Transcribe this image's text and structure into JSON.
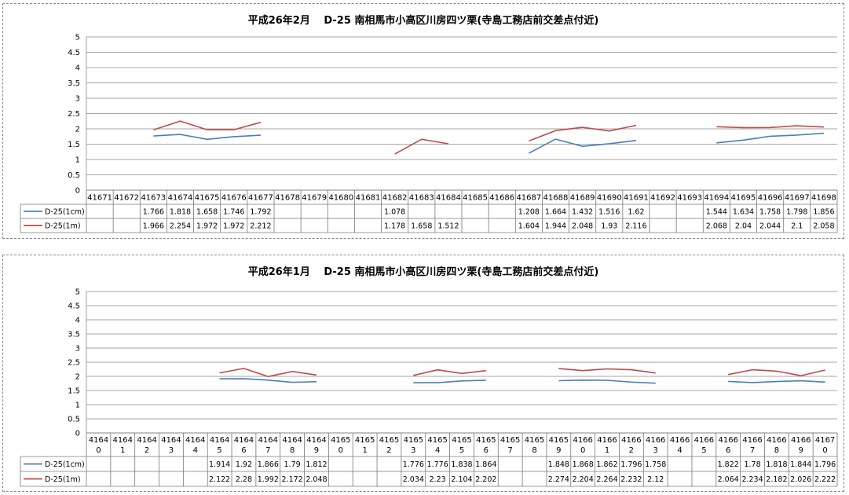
{
  "chart_data": [
    {
      "type": "line",
      "title": "平成26年2月　 D-25 南相馬市小高区川房四ツ栗(寺島工務店前交差点付近)",
      "ylim": [
        0,
        5
      ],
      "yticks": [
        "0",
        "0.5",
        "1",
        "1.5",
        "2",
        "2.5",
        "3",
        "3.5",
        "4",
        "4.5",
        "5"
      ],
      "grid": true,
      "legend": "data-table",
      "categories": [
        "41671",
        "41672",
        "41673",
        "41674",
        "41675",
        "41676",
        "41677",
        "41678",
        "41679",
        "41680",
        "41681",
        "41682",
        "41683",
        "41684",
        "41685",
        "41686",
        "41687",
        "41688",
        "41689",
        "41690",
        "41691",
        "41692",
        "41693",
        "41694",
        "41695",
        "41696",
        "41697",
        "41698"
      ],
      "series": [
        {
          "name": "D-25(1cm)",
          "color": "#4a7ebb",
          "values": [
            null,
            null,
            1.766,
            1.818,
            1.658,
            1.746,
            1.792,
            null,
            null,
            null,
            null,
            1.078,
            null,
            null,
            null,
            null,
            1.208,
            1.664,
            1.432,
            1.516,
            1.62,
            null,
            null,
            1.544,
            1.634,
            1.758,
            1.798,
            1.856
          ]
        },
        {
          "name": "D-25(1m)",
          "color": "#be4b48",
          "values": [
            null,
            null,
            1.966,
            2.254,
            1.972,
            1.972,
            2.212,
            null,
            null,
            null,
            null,
            1.178,
            1.658,
            1.512,
            null,
            null,
            1.604,
            1.944,
            2.048,
            1.93,
            2.116,
            null,
            null,
            2.068,
            2.04,
            2.044,
            2.1,
            2.058
          ]
        }
      ],
      "value_labels": [
        [
          "",
          "",
          "1.766",
          "1.818",
          "1.658",
          "1.746",
          "1.792",
          "",
          "",
          "",
          "",
          "1.078",
          "",
          "",
          "",
          "",
          "1.208",
          "1.664",
          "1.432",
          "1.516",
          "1.62",
          "",
          "",
          "1.544",
          "1.634",
          "1.758",
          "1.798",
          "1.856"
        ],
        [
          "",
          "",
          "1.966",
          "2.254",
          "1.972",
          "1.972",
          "2.212",
          "",
          "",
          "",
          "",
          "1.178",
          "1.658",
          "1.512",
          "",
          "",
          "1.604",
          "1.944",
          "2.048",
          "1.93",
          "2.116",
          "",
          "",
          "2.068",
          "2.04",
          "2.044",
          "2.1",
          "2.058"
        ]
      ]
    },
    {
      "type": "line",
      "title": "平成26年1月　 D-25 南相馬市小高区川房四ツ栗(寺島工務店前交差点付近)",
      "ylim": [
        0,
        5
      ],
      "yticks": [
        "0",
        "0.5",
        "1",
        "1.5",
        "2",
        "2.5",
        "3",
        "3.5",
        "4",
        "4.5",
        "5"
      ],
      "grid": true,
      "legend": "data-table",
      "categories": [
        "41640",
        "41641",
        "41642",
        "41643",
        "41644",
        "41645",
        "41646",
        "41647",
        "41648",
        "41649",
        "41650",
        "41651",
        "41652",
        "41653",
        "41654",
        "41655",
        "41656",
        "41657",
        "41658",
        "41659",
        "41660",
        "41661",
        "41662",
        "41663",
        "41664",
        "41665",
        "41666",
        "41667",
        "41668",
        "41669",
        "41670"
      ],
      "series": [
        {
          "name": "D-25(1cm)",
          "color": "#4a7ebb",
          "values": [
            null,
            null,
            null,
            null,
            null,
            1.914,
            1.92,
            1.866,
            1.79,
            1.812,
            null,
            null,
            null,
            1.776,
            1.776,
            1.838,
            1.864,
            null,
            null,
            1.848,
            1.868,
            1.862,
            1.796,
            1.758,
            null,
            null,
            1.822,
            1.78,
            1.818,
            1.844,
            1.796
          ]
        },
        {
          "name": "D-25(1m)",
          "color": "#be4b48",
          "values": [
            null,
            null,
            null,
            null,
            null,
            2.122,
            2.28,
            1.992,
            2.172,
            2.048,
            null,
            null,
            null,
            2.034,
            2.23,
            2.104,
            2.202,
            null,
            null,
            2.274,
            2.204,
            2.264,
            2.232,
            2.12,
            null,
            null,
            2.064,
            2.234,
            2.182,
            2.026,
            2.222
          ]
        }
      ],
      "value_labels": [
        [
          "",
          "",
          "",
          "",
          "",
          "1.914",
          "1.92",
          "1.866",
          "1.79",
          "1.812",
          "",
          "",
          "",
          "1.776",
          "1.776",
          "1.838",
          "1.864",
          "",
          "",
          "1.848",
          "1.868",
          "1.862",
          "1.796",
          "1.758",
          "",
          "",
          "1.822",
          "1.78",
          "1.818",
          "1.844",
          "1.796"
        ],
        [
          "",
          "",
          "",
          "",
          "",
          "2.122",
          "2.28",
          "1.992",
          "2.172",
          "2.048",
          "",
          "",
          "",
          "2.034",
          "2.23",
          "2.104",
          "2.202",
          "",
          "",
          "2.274",
          "2.204",
          "2.264",
          "2.232",
          "2.12",
          "",
          "",
          "2.064",
          "2.234",
          "2.182",
          "2.026",
          "2.222"
        ]
      ]
    }
  ]
}
